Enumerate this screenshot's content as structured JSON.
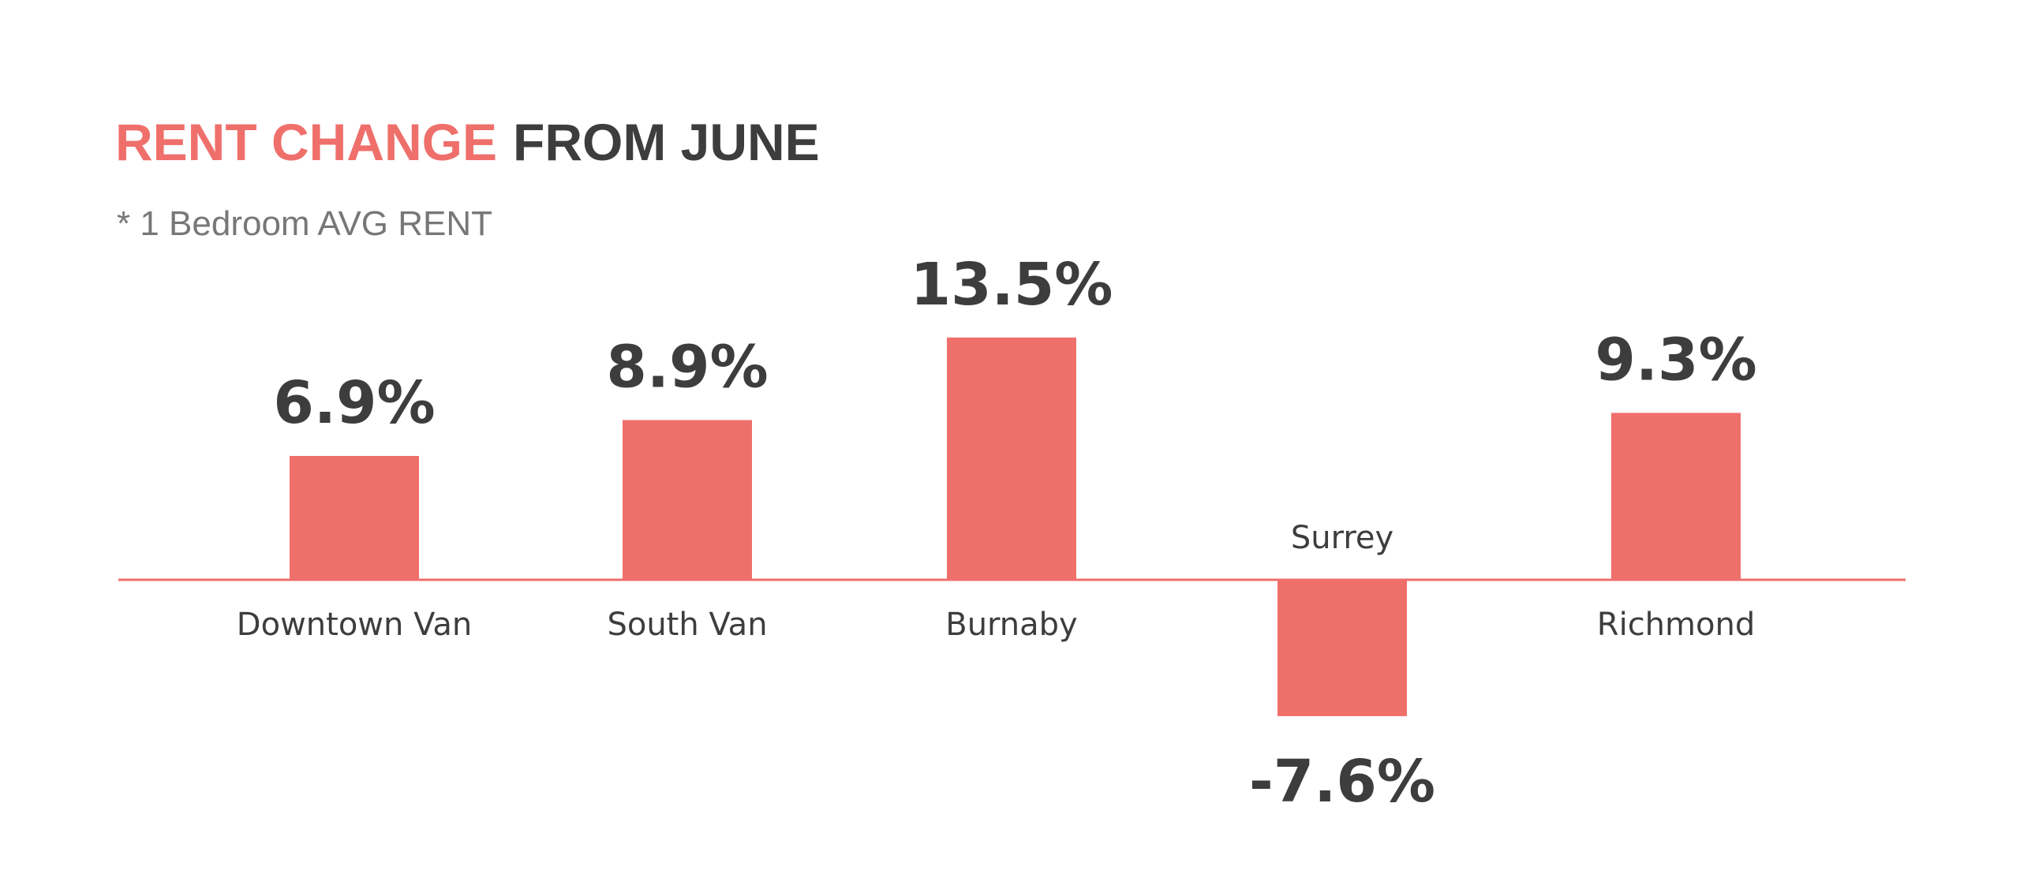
{
  "title": {
    "accent": "RENT CHANGE",
    "rest": "FROM JUNE"
  },
  "subtitle": "* 1 Bedroom AVG RENT",
  "colors": {
    "bar": "#ef6f6b",
    "title_accent": "#ef6f6b",
    "text": "#3d3d3d",
    "subtitle": "#777777",
    "baseline": "#ef6f6b"
  },
  "chart_data": {
    "type": "bar",
    "title": "RENT CHANGE FROM JUNE",
    "subtitle": "* 1 Bedroom AVG RENT",
    "xlabel": "",
    "ylabel": "",
    "categories": [
      "Downtown Van",
      "South Van",
      "Burnaby",
      "Surrey",
      "Richmond"
    ],
    "values": [
      6.9,
      8.9,
      13.5,
      -7.6,
      9.3
    ],
    "value_labels": [
      "6.9%",
      "8.9%",
      "13.5%",
      "-7.6%",
      "9.3%"
    ],
    "unit": "%",
    "ylim": [
      -10,
      16
    ],
    "grid": false,
    "legend": "none"
  }
}
